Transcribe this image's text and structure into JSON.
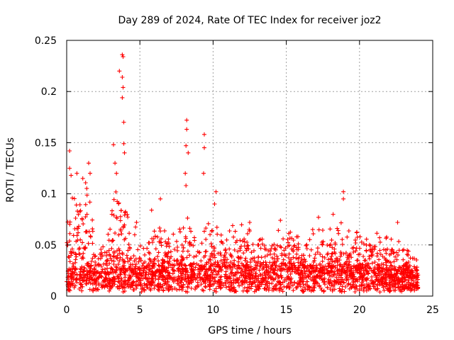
{
  "chart_data": {
    "type": "scatter",
    "title": "Day 289 of 2024, Rate Of TEC Index for receiver joz2",
    "xlabel": "GPS time / hours",
    "ylabel": "ROTI / TECUs",
    "xlim": [
      0,
      25
    ],
    "ylim": [
      0,
      0.25
    ],
    "xticks": [
      0,
      5,
      10,
      15,
      20,
      25
    ],
    "xtick_labels": [
      "0",
      "5",
      "10",
      "15",
      "20",
      "25"
    ],
    "yticks": [
      0,
      0.05,
      0.1,
      0.15,
      0.2,
      0.25
    ],
    "ytick_labels": [
      "0",
      "0.05",
      "0.1",
      "0.15",
      "0.2",
      "0.25"
    ],
    "grid": true,
    "marker": "+",
    "series": [
      {
        "name": "ROTI",
        "color": "#ff0000",
        "notable_points": [
          {
            "x": 3.8,
            "y": 0.236
          },
          {
            "x": 3.85,
            "y": 0.234
          },
          {
            "x": 3.6,
            "y": 0.22
          },
          {
            "x": 3.8,
            "y": 0.214
          },
          {
            "x": 3.85,
            "y": 0.204
          },
          {
            "x": 3.8,
            "y": 0.194
          },
          {
            "x": 3.9,
            "y": 0.17
          },
          {
            "x": 3.9,
            "y": 0.149
          },
          {
            "x": 3.95,
            "y": 0.14
          },
          {
            "x": 3.2,
            "y": 0.148
          },
          {
            "x": 3.3,
            "y": 0.13
          },
          {
            "x": 3.4,
            "y": 0.12
          },
          {
            "x": 8.2,
            "y": 0.172
          },
          {
            "x": 8.2,
            "y": 0.163
          },
          {
            "x": 8.15,
            "y": 0.147
          },
          {
            "x": 8.3,
            "y": 0.14
          },
          {
            "x": 8.1,
            "y": 0.12
          },
          {
            "x": 8.15,
            "y": 0.108
          },
          {
            "x": 9.4,
            "y": 0.158
          },
          {
            "x": 9.4,
            "y": 0.145
          },
          {
            "x": 9.35,
            "y": 0.12
          },
          {
            "x": 10.2,
            "y": 0.102
          },
          {
            "x": 10.1,
            "y": 0.09
          },
          {
            "x": 0.2,
            "y": 0.142
          },
          {
            "x": 0.2,
            "y": 0.125
          },
          {
            "x": 0.3,
            "y": 0.118
          },
          {
            "x": 0.7,
            "y": 0.12
          },
          {
            "x": 1.1,
            "y": 0.115
          },
          {
            "x": 1.5,
            "y": 0.13
          },
          {
            "x": 1.6,
            "y": 0.12
          },
          {
            "x": 18.9,
            "y": 0.102
          },
          {
            "x": 18.9,
            "y": 0.095
          },
          {
            "x": 18.2,
            "y": 0.08
          },
          {
            "x": 17.2,
            "y": 0.077
          },
          {
            "x": 6.4,
            "y": 0.095
          },
          {
            "x": 5.8,
            "y": 0.084
          },
          {
            "x": 12.5,
            "y": 0.072
          },
          {
            "x": 14.6,
            "y": 0.074
          },
          {
            "x": 16.8,
            "y": 0.065
          },
          {
            "x": 19.8,
            "y": 0.062
          },
          {
            "x": 22.6,
            "y": 0.072
          }
        ],
        "envelope": [
          {
            "x": 0.0,
            "base": 0.012,
            "peak": 0.06
          },
          {
            "x": 0.5,
            "base": 0.015,
            "peak": 0.11
          },
          {
            "x": 1.0,
            "base": 0.015,
            "peak": 0.1
          },
          {
            "x": 1.5,
            "base": 0.013,
            "peak": 0.11
          },
          {
            "x": 2.0,
            "base": 0.012,
            "peak": 0.05
          },
          {
            "x": 2.5,
            "base": 0.012,
            "peak": 0.05
          },
          {
            "x": 3.0,
            "base": 0.013,
            "peak": 0.08
          },
          {
            "x": 3.5,
            "base": 0.015,
            "peak": 0.11
          },
          {
            "x": 4.0,
            "base": 0.015,
            "peak": 0.08
          },
          {
            "x": 5.0,
            "base": 0.015,
            "peak": 0.06
          },
          {
            "x": 6.0,
            "base": 0.016,
            "peak": 0.065
          },
          {
            "x": 7.0,
            "base": 0.017,
            "peak": 0.06
          },
          {
            "x": 8.0,
            "base": 0.017,
            "peak": 0.07
          },
          {
            "x": 9.0,
            "base": 0.017,
            "peak": 0.065
          },
          {
            "x": 10.0,
            "base": 0.017,
            "peak": 0.07
          },
          {
            "x": 11.0,
            "base": 0.017,
            "peak": 0.06
          },
          {
            "x": 12.0,
            "base": 0.017,
            "peak": 0.06
          },
          {
            "x": 13.0,
            "base": 0.017,
            "peak": 0.06
          },
          {
            "x": 14.0,
            "base": 0.017,
            "peak": 0.055
          },
          {
            "x": 15.0,
            "base": 0.017,
            "peak": 0.06
          },
          {
            "x": 16.0,
            "base": 0.017,
            "peak": 0.055
          },
          {
            "x": 17.0,
            "base": 0.017,
            "peak": 0.06
          },
          {
            "x": 18.0,
            "base": 0.017,
            "peak": 0.06
          },
          {
            "x": 19.0,
            "base": 0.017,
            "peak": 0.065
          },
          {
            "x": 20.0,
            "base": 0.016,
            "peak": 0.055
          },
          {
            "x": 21.0,
            "base": 0.015,
            "peak": 0.05
          },
          {
            "x": 22.0,
            "base": 0.015,
            "peak": 0.05
          },
          {
            "x": 23.0,
            "base": 0.013,
            "peak": 0.045
          },
          {
            "x": 24.0,
            "base": 0.012,
            "peak": 0.03
          }
        ]
      }
    ]
  }
}
